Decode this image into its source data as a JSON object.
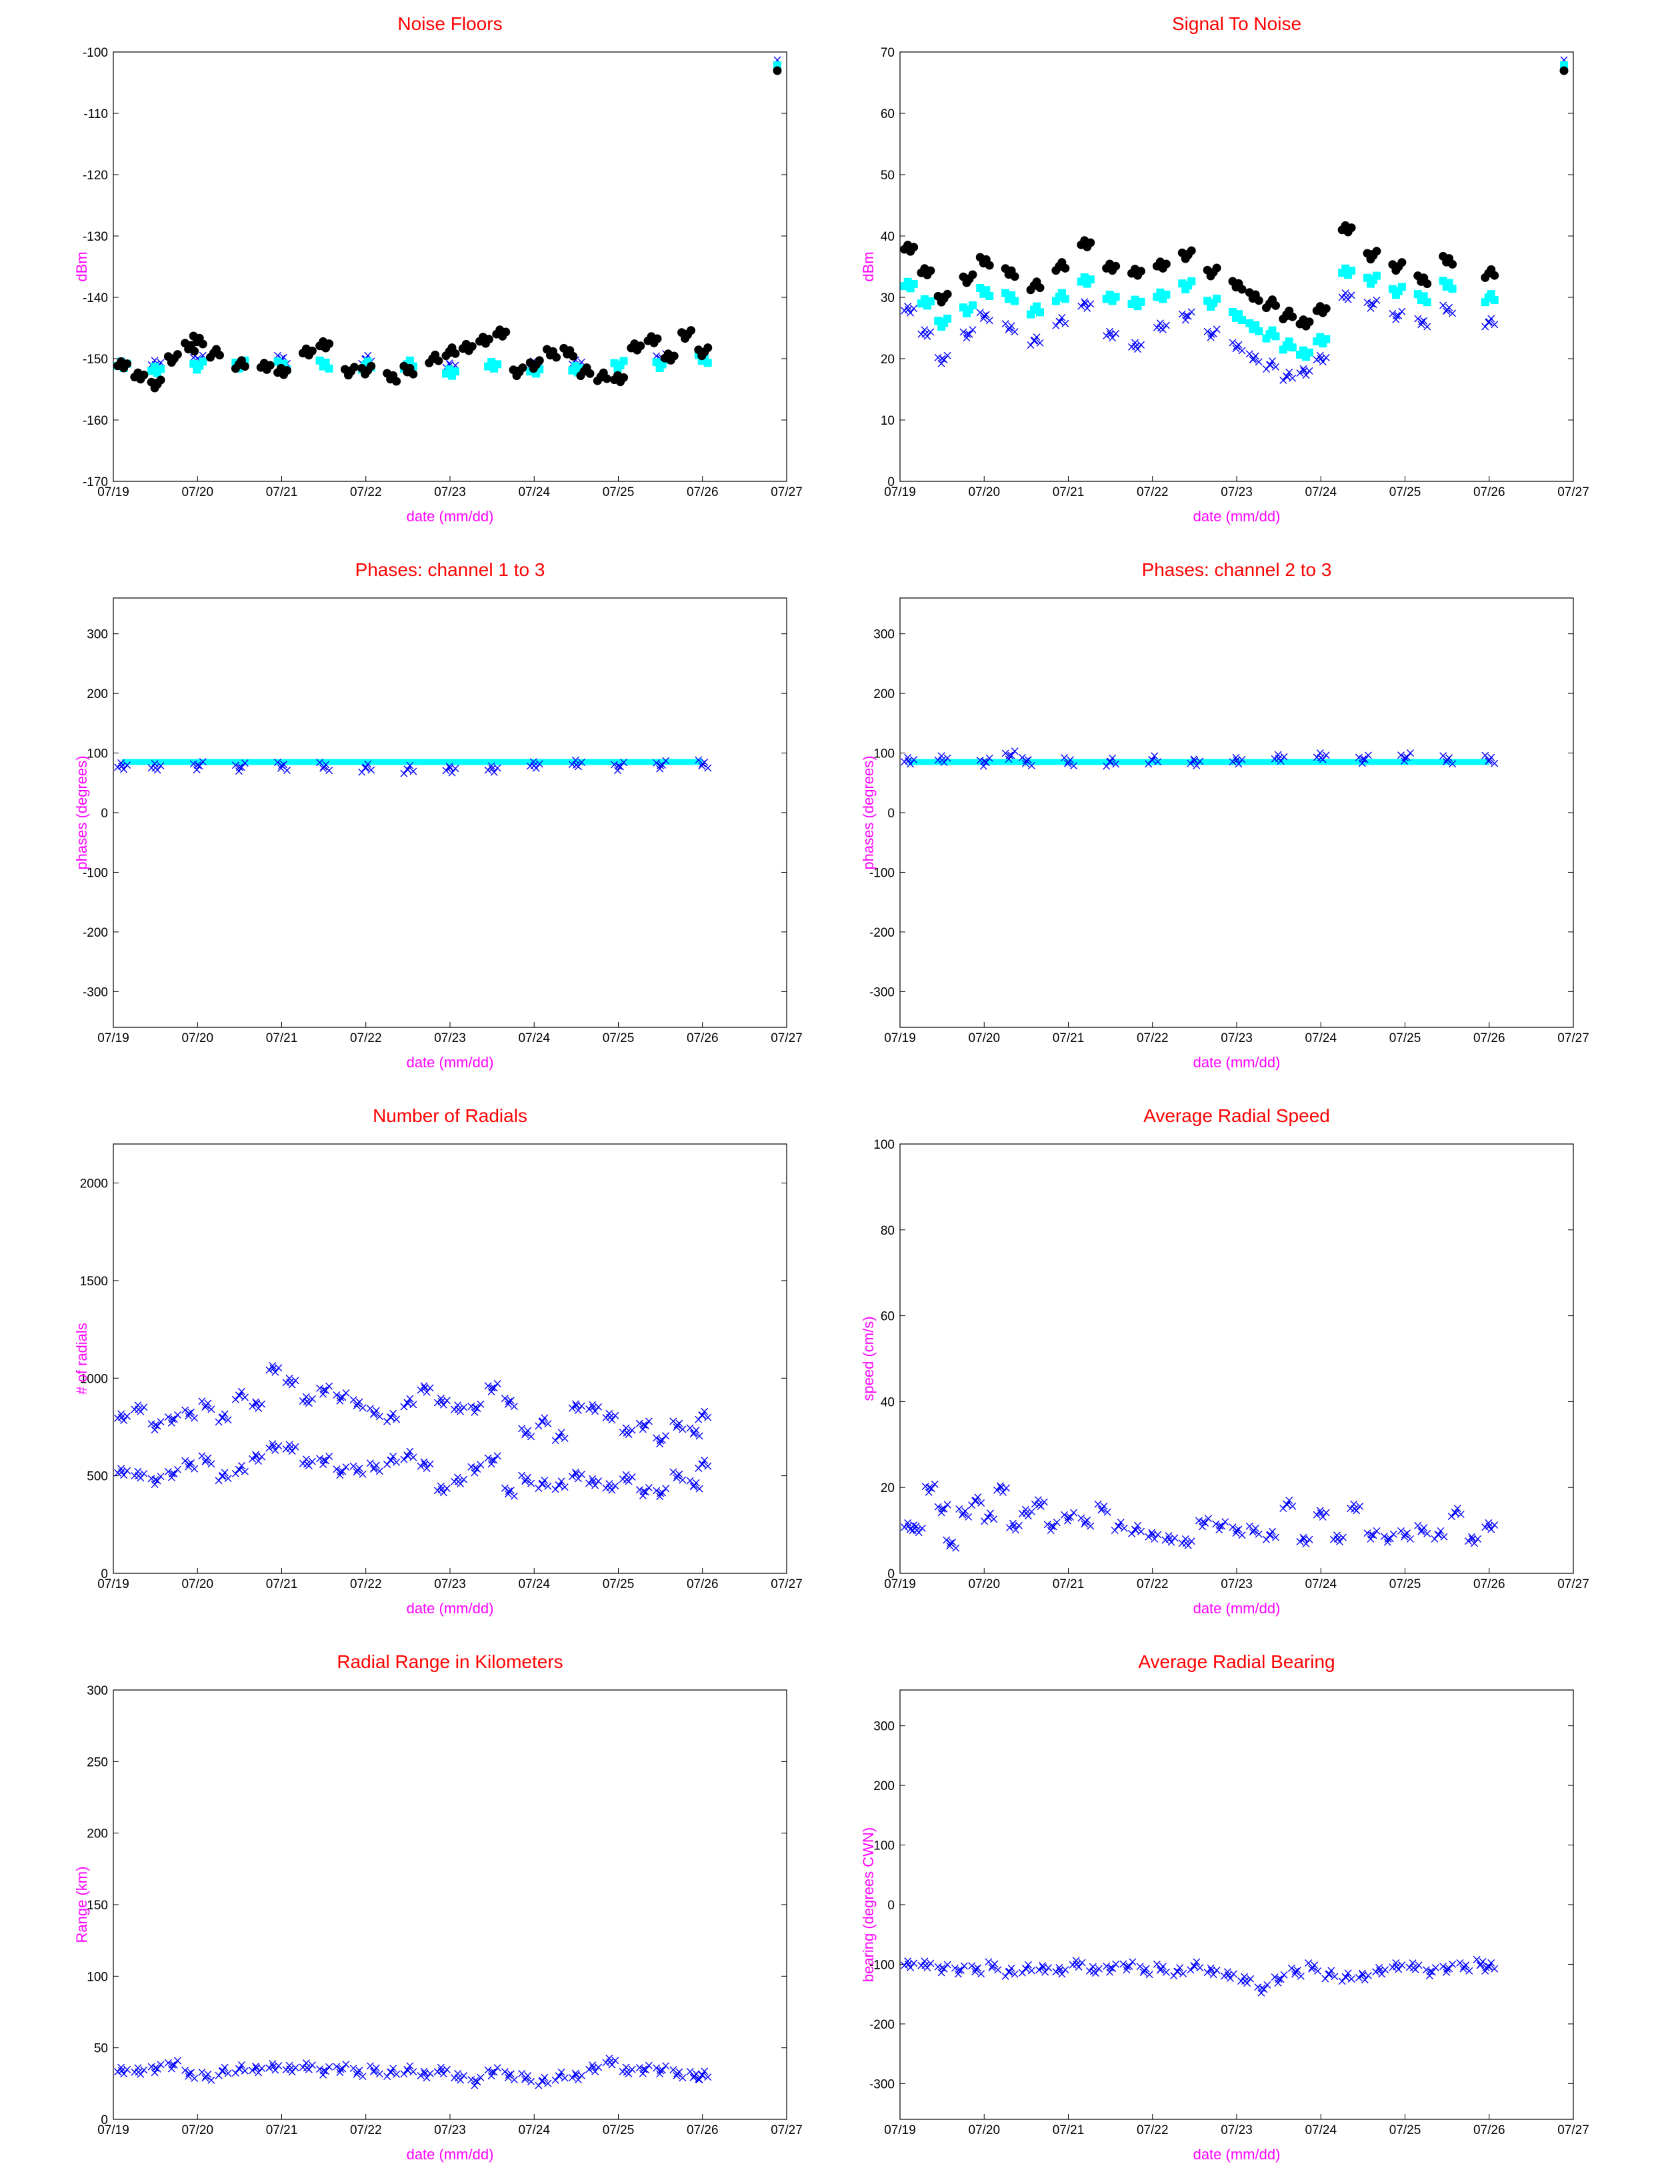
{
  "colors": {
    "title": "#ff0000",
    "axis_label": "#ff00ff",
    "blue": "#0000ff",
    "cyan": "#00ffff",
    "black": "#000000",
    "grey": "#808080"
  },
  "chart_data": [
    {
      "id": "noise-floors",
      "type": "scatter",
      "title": "Noise Floors",
      "xlabel": "date (mm/dd)",
      "ylabel": "dBm",
      "xticks": [
        "07/19",
        "07/20",
        "07/21",
        "07/22",
        "07/23",
        "07/24",
        "07/25",
        "07/26",
        "07/27"
      ],
      "yticks": [
        "-100",
        "-110",
        "-120",
        "-130",
        "-140",
        "-150",
        "-160",
        "-170"
      ],
      "ylim": [
        -170,
        -100
      ],
      "grid": false,
      "legend": "top-right",
      "series": [
        {
          "color": "#0000ff",
          "marker": "x",
          "x": [
            0.1,
            0.5,
            1,
            1.5,
            2,
            2.5,
            3,
            3.5,
            4,
            4.5,
            5,
            5.5,
            6,
            6.5,
            7
          ],
          "y": [
            -151,
            -151,
            -150,
            -151,
            -150,
            -151,
            -150,
            -151,
            -151,
            -151,
            -151,
            -151,
            -151,
            -150,
            -150
          ]
        },
        {
          "color": "#00ffff",
          "marker": "square",
          "x": [
            0.1,
            0.5,
            1,
            1.5,
            2,
            2.5,
            3,
            3.5,
            4,
            4.5,
            5,
            5.5,
            6,
            6.5,
            7
          ],
          "y": [
            -151,
            -152,
            -151,
            -151,
            -151,
            -151,
            -151,
            -151,
            -152,
            -151,
            -152,
            -152,
            -151,
            -151,
            -150
          ]
        },
        {
          "color": "#000000",
          "marker": "dot",
          "x": [
            0.1,
            0.3,
            0.5,
            0.7,
            0.9,
            1.0,
            1.2,
            1.5,
            1.8,
            2.0,
            2.3,
            2.5,
            2.8,
            3.0,
            3.3,
            3.5,
            3.8,
            4.0,
            4.2,
            4.4,
            4.6,
            4.8,
            5.0,
            5.2,
            5.4,
            5.6,
            5.8,
            6.0,
            6.2,
            6.4,
            6.6,
            6.8,
            7.0
          ],
          "y": [
            -151,
            -153,
            -154,
            -150,
            -148,
            -147,
            -149,
            -151,
            -151,
            -152,
            -149,
            -148,
            -152,
            -152,
            -153,
            -152,
            -150,
            -149,
            -148,
            -147,
            -146,
            -152,
            -151,
            -149,
            -149,
            -152,
            -153,
            -153,
            -148,
            -147,
            -150,
            -146,
            -149
          ]
        }
      ]
    },
    {
      "id": "signal-to-noise",
      "type": "scatter",
      "title": "Signal To Noise",
      "xlabel": "date (mm/dd)",
      "ylabel": "dBm",
      "xticks": [
        "07/19",
        "07/20",
        "07/21",
        "07/22",
        "07/23",
        "07/24",
        "07/25",
        "07/26",
        "07/27"
      ],
      "yticks": [
        "0",
        "10",
        "20",
        "30",
        "40",
        "50",
        "60",
        "70"
      ],
      "ylim": [
        0,
        70
      ],
      "grid": false,
      "legend": "top-right",
      "series": [
        {
          "color": "#0000ff",
          "marker": "x",
          "x": [
            0.1,
            0.3,
            0.5,
            0.8,
            1.0,
            1.3,
            1.6,
            1.9,
            2.2,
            2.5,
            2.8,
            3.1,
            3.4,
            3.7,
            4.0,
            4.2,
            4.4,
            4.6,
            4.8,
            5.0,
            5.3,
            5.6,
            5.9,
            6.2,
            6.5,
            7.0
          ],
          "y": [
            28,
            24,
            20,
            24,
            27,
            25,
            23,
            26,
            29,
            24,
            22,
            25,
            27,
            24,
            22,
            20,
            19,
            17,
            18,
            20,
            30,
            29,
            27,
            26,
            28,
            26
          ]
        },
        {
          "color": "#00ffff",
          "marker": "square",
          "x": [
            0.1,
            0.3,
            0.5,
            0.8,
            1.0,
            1.3,
            1.6,
            1.9,
            2.2,
            2.5,
            2.8,
            3.1,
            3.4,
            3.7,
            4.0,
            4.2,
            4.4,
            4.6,
            4.8,
            5.0,
            5.3,
            5.6,
            5.9,
            6.2,
            6.5,
            7.0
          ],
          "y": [
            32,
            29,
            26,
            28,
            31,
            30,
            28,
            30,
            33,
            30,
            29,
            30,
            32,
            29,
            27,
            25,
            24,
            22,
            21,
            23,
            34,
            33,
            31,
            30,
            32,
            30
          ]
        },
        {
          "color": "#000000",
          "marker": "dot",
          "x": [
            0.1,
            0.3,
            0.5,
            0.8,
            1.0,
            1.3,
            1.6,
            1.9,
            2.2,
            2.5,
            2.8,
            3.1,
            3.4,
            3.7,
            4.0,
            4.2,
            4.4,
            4.6,
            4.8,
            5.0,
            5.3,
            5.6,
            5.9,
            6.2,
            6.5,
            7.0
          ],
          "y": [
            38,
            34,
            30,
            33,
            36,
            34,
            32,
            35,
            39,
            35,
            34,
            35,
            37,
            34,
            32,
            30,
            29,
            27,
            26,
            28,
            41,
            37,
            35,
            33,
            36,
            34
          ]
        }
      ]
    },
    {
      "id": "phases-1-3",
      "type": "scatter",
      "title": "Phases: channel 1 to 3",
      "xlabel": "date (mm/dd)",
      "ylabel": "phases (degrees)",
      "xticks": [
        "07/19",
        "07/20",
        "07/21",
        "07/22",
        "07/23",
        "07/24",
        "07/25",
        "07/26",
        "07/27"
      ],
      "yticks": [
        "300",
        "200",
        "100",
        "0",
        "-100",
        "-200",
        "-300"
      ],
      "ylim": [
        -360,
        360
      ],
      "grid": false,
      "series": [
        {
          "color": "#00ffff",
          "marker": "line",
          "x": [
            0.1,
            7.0
          ],
          "y": [
            85,
            85
          ]
        },
        {
          "color": "#0000ff",
          "marker": "x",
          "x": [
            0.1,
            0.5,
            1,
            1.5,
            2,
            2.5,
            3,
            3.5,
            4,
            4.5,
            5,
            5.5,
            6,
            6.5,
            7
          ],
          "y": [
            78,
            75,
            80,
            76,
            79,
            77,
            76,
            72,
            75,
            74,
            79,
            80,
            78,
            79,
            82
          ]
        }
      ]
    },
    {
      "id": "phases-2-3",
      "type": "scatter",
      "title": "Phases: channel 2 to 3",
      "xlabel": "date (mm/dd)",
      "ylabel": "phases (degrees)",
      "xticks": [
        "07/19",
        "07/20",
        "07/21",
        "07/22",
        "07/23",
        "07/24",
        "07/25",
        "07/26",
        "07/27"
      ],
      "yticks": [
        "300",
        "200",
        "100",
        "0",
        "-100",
        "-200",
        "-300"
      ],
      "ylim": [
        -360,
        360
      ],
      "grid": false,
      "series": [
        {
          "color": "#00ffff",
          "marker": "line",
          "x": [
            0.1,
            7.0
          ],
          "y": [
            85,
            85
          ]
        },
        {
          "color": "#0000ff",
          "marker": "x",
          "x": [
            0.1,
            0.5,
            1,
            1.3,
            1.5,
            2,
            2.5,
            3,
            3.5,
            4,
            4.5,
            5,
            5.5,
            6,
            6.5,
            7
          ],
          "y": [
            87,
            88,
            86,
            96,
            87,
            85,
            86,
            88,
            87,
            88,
            91,
            92,
            90,
            92,
            89,
            88
          ]
        }
      ]
    },
    {
      "id": "number-of-radials",
      "type": "scatter",
      "title": "Number of Radials",
      "xlabel": "date (mm/dd)",
      "ylabel": "# of radials",
      "xticks": [
        "07/19",
        "07/20",
        "07/21",
        "07/22",
        "07/23",
        "07/24",
        "07/25",
        "07/26",
        "07/27"
      ],
      "yticks": [
        "0",
        "500",
        "1000",
        "1500",
        "2000"
      ],
      "ylim": [
        0,
        2200
      ],
      "grid": false,
      "series": [
        {
          "color": "#0000ff",
          "marker": "x",
          "x": [
            0.1,
            0.3,
            0.5,
            0.7,
            0.9,
            1.1,
            1.3,
            1.5,
            1.7,
            1.9,
            2.1,
            2.3,
            2.5,
            2.7,
            2.9,
            3.1,
            3.3,
            3.5,
            3.7,
            3.9,
            4.1,
            4.3,
            4.5,
            4.7,
            4.9,
            5.1,
            5.3,
            5.5,
            5.7,
            5.9,
            6.1,
            6.3,
            6.5,
            6.7,
            6.9,
            7.0
          ],
          "y": [
            520,
            500,
            480,
            510,
            560,
            580,
            500,
            530,
            600,
            650,
            640,
            560,
            580,
            520,
            530,
            540,
            580,
            600,
            560,
            430,
            470,
            540,
            580,
            420,
            480,
            460,
            450,
            510,
            470,
            440,
            480,
            420,
            410,
            500,
            450,
            560
          ]
        },
        {
          "color": "#0000ff",
          "marker": "x",
          "x": [
            0.1,
            0.3,
            0.5,
            0.7,
            0.9,
            1.1,
            1.3,
            1.5,
            1.7,
            1.9,
            2.1,
            2.3,
            2.5,
            2.7,
            2.9,
            3.1,
            3.3,
            3.5,
            3.7,
            3.9,
            4.1,
            4.3,
            4.5,
            4.7,
            4.9,
            5.1,
            5.3,
            5.5,
            5.7,
            5.9,
            6.1,
            6.3,
            6.5,
            6.7,
            6.9,
            7.0
          ],
          "y": [
            800,
            840,
            760,
            790,
            820,
            860,
            800,
            910,
            870,
            1050,
            980,
            880,
            940,
            900,
            870,
            820,
            800,
            870,
            950,
            880,
            840,
            850,
            950,
            880,
            720,
            780,
            700,
            860,
            850,
            800,
            720,
            760,
            680,
            760,
            720,
            810
          ]
        }
      ]
    },
    {
      "id": "average-radial-speed",
      "type": "scatter",
      "title": "Average Radial Speed",
      "xlabel": "date (mm/dd)",
      "ylabel": "speed (cm/s)",
      "xticks": [
        "07/19",
        "07/20",
        "07/21",
        "07/22",
        "07/23",
        "07/24",
        "07/25",
        "07/26",
        "07/27"
      ],
      "yticks": [
        "0",
        "20",
        "40",
        "60",
        "80",
        "100"
      ],
      "ylim": [
        0,
        100
      ],
      "grid": false,
      "series": [
        {
          "color": "#0000ff",
          "marker": "x",
          "x": [
            0.1,
            0.2,
            0.35,
            0.5,
            0.6,
            0.75,
            0.9,
            1.05,
            1.2,
            1.35,
            1.5,
            1.65,
            1.8,
            2.0,
            2.2,
            2.4,
            2.6,
            2.8,
            3.0,
            3.2,
            3.4,
            3.6,
            3.8,
            4.0,
            4.2,
            4.4,
            4.6,
            4.8,
            5.0,
            5.2,
            5.4,
            5.6,
            5.8,
            6.0,
            6.2,
            6.4,
            6.6,
            6.8,
            7.0
          ],
          "y": [
            11,
            10,
            20,
            15,
            7,
            14,
            17,
            13,
            20,
            11,
            14,
            16,
            11,
            13,
            12,
            15,
            11,
            10,
            9,
            8,
            7,
            12,
            11,
            10,
            10,
            9,
            16,
            8,
            14,
            8,
            15,
            9,
            8,
            9,
            10,
            9,
            14,
            8,
            11
          ]
        }
      ]
    },
    {
      "id": "radial-range",
      "type": "scatter",
      "title": "Radial Range in Kilometers",
      "xlabel": "date (mm/dd)",
      "ylabel": "Range (km)",
      "xticks": [
        "07/19",
        "07/20",
        "07/21",
        "07/22",
        "07/23",
        "07/24",
        "07/25",
        "07/26",
        "07/27"
      ],
      "yticks": [
        "0",
        "50",
        "100",
        "150",
        "200",
        "250",
        "300"
      ],
      "ylim": [
        0,
        300
      ],
      "grid": false,
      "series": [
        {
          "color": "#0000ff",
          "marker": "x",
          "x": [
            0.1,
            0.3,
            0.5,
            0.7,
            0.9,
            1.1,
            1.3,
            1.5,
            1.7,
            1.9,
            2.1,
            2.3,
            2.5,
            2.7,
            2.9,
            3.1,
            3.3,
            3.5,
            3.7,
            3.9,
            4.1,
            4.3,
            4.5,
            4.7,
            4.9,
            5.1,
            5.3,
            5.5,
            5.7,
            5.9,
            6.1,
            6.3,
            6.5,
            6.7,
            6.9,
            7.0
          ],
          "y": [
            34,
            33,
            36,
            38,
            32,
            30,
            34,
            35,
            36,
            37,
            35,
            36,
            34,
            35,
            33,
            34,
            33,
            34,
            32,
            34,
            29,
            27,
            33,
            31,
            29,
            27,
            30,
            31,
            36,
            40,
            33,
            35,
            34,
            32,
            30,
            31
          ]
        }
      ]
    },
    {
      "id": "average-radial-bearing",
      "type": "scatter",
      "title": "Average Radial Bearing",
      "xlabel": "date (mm/dd)",
      "ylabel": "bearing (degrees CWN)",
      "xticks": [
        "07/19",
        "07/20",
        "07/21",
        "07/22",
        "07/23",
        "07/24",
        "07/25",
        "07/26",
        "07/27"
      ],
      "yticks": [
        "300",
        "200",
        "100",
        "0",
        "-100",
        "-200",
        "-300"
      ],
      "ylim": [
        -360,
        360
      ],
      "grid": false,
      "series": [
        {
          "color": "#0000ff",
          "marker": "x",
          "x": [
            0.1,
            0.3,
            0.5,
            0.7,
            0.9,
            1.1,
            1.3,
            1.5,
            1.7,
            1.9,
            2.1,
            2.3,
            2.5,
            2.7,
            2.9,
            3.1,
            3.3,
            3.5,
            3.7,
            3.9,
            4.1,
            4.3,
            4.5,
            4.7,
            4.9,
            5.1,
            5.3,
            5.5,
            5.7,
            5.9,
            6.1,
            6.3,
            6.5,
            6.7,
            6.9,
            7.0
          ],
          "y": [
            -100,
            -102,
            -106,
            -110,
            -108,
            -103,
            -112,
            -108,
            -105,
            -110,
            -100,
            -112,
            -106,
            -104,
            -110,
            -108,
            -112,
            -104,
            -110,
            -118,
            -128,
            -140,
            -125,
            -112,
            -105,
            -116,
            -122,
            -118,
            -110,
            -104,
            -106,
            -112,
            -108,
            -104,
            -100,
            -104
          ]
        }
      ]
    }
  ]
}
